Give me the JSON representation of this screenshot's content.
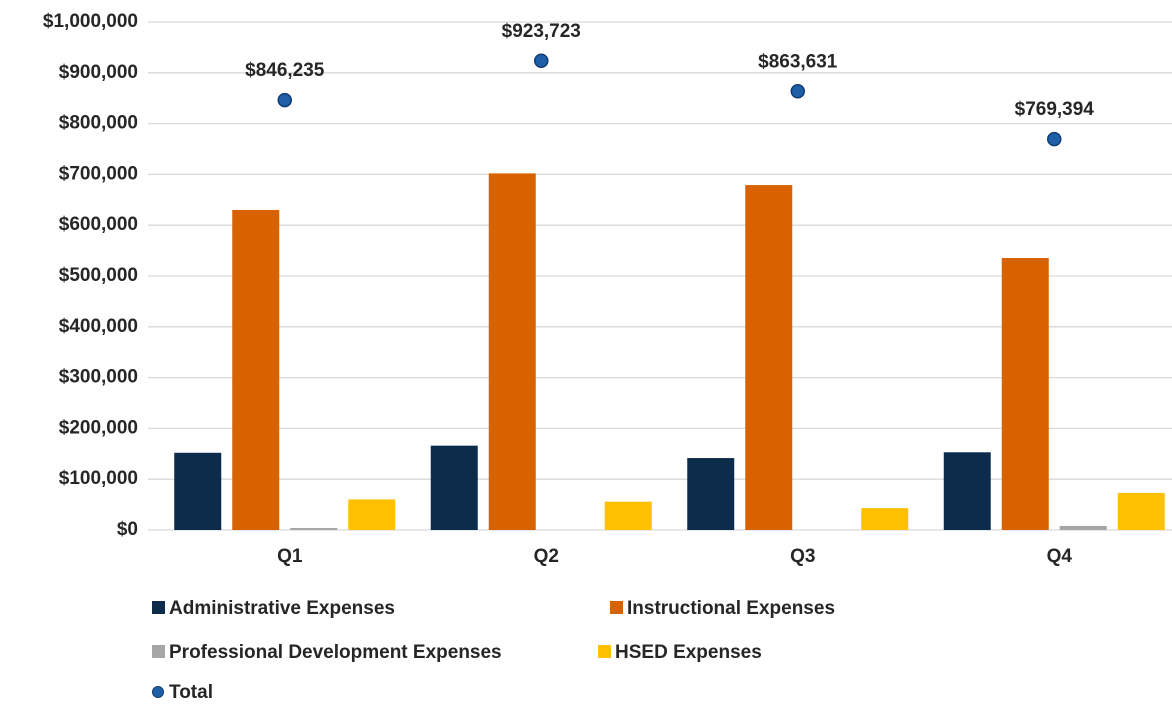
{
  "chart_data": {
    "type": "bar",
    "categories": [
      "Q1",
      "Q2",
      "Q3",
      "Q4"
    ],
    "series": [
      {
        "name": "Administrative Expenses",
        "color": "#0d2b4b",
        "values": [
          152000,
          166000,
          141631,
          153000
        ]
      },
      {
        "name": "Instructional Expenses",
        "color": "#d96200",
        "values": [
          630000,
          702000,
          679000,
          535394
        ]
      },
      {
        "name": "Professional Development Expenses",
        "color": "#a6a6a6",
        "values": [
          4000,
          0,
          0,
          8000
        ]
      },
      {
        "name": "HSED Expenses",
        "color": "#ffc000",
        "values": [
          60235,
          55723,
          43000,
          73000
        ]
      },
      {
        "name": "Total",
        "type": "scatter",
        "color": "#1f5fa8",
        "values": [
          846235,
          923723,
          863631,
          769394
        ],
        "value_labels": [
          "$846,235",
          "$923,723",
          "$863,631",
          "$769,394"
        ]
      }
    ],
    "ylim": [
      0,
      1000000
    ],
    "yticks": [
      {
        "value": 0,
        "label": "$0"
      },
      {
        "value": 100000,
        "label": "$100,000"
      },
      {
        "value": 200000,
        "label": "$200,000"
      },
      {
        "value": 300000,
        "label": "$300,000"
      },
      {
        "value": 400000,
        "label": "$400,000"
      },
      {
        "value": 500000,
        "label": "$500,000"
      },
      {
        "value": 600000,
        "label": "$600,000"
      },
      {
        "value": 700000,
        "label": "$700,000"
      },
      {
        "value": 800000,
        "label": "$800,000"
      },
      {
        "value": 900000,
        "label": "$900,000"
      },
      {
        "value": 1000000,
        "label": "$1,000,000"
      }
    ],
    "grid": true,
    "legend": "bottom"
  }
}
